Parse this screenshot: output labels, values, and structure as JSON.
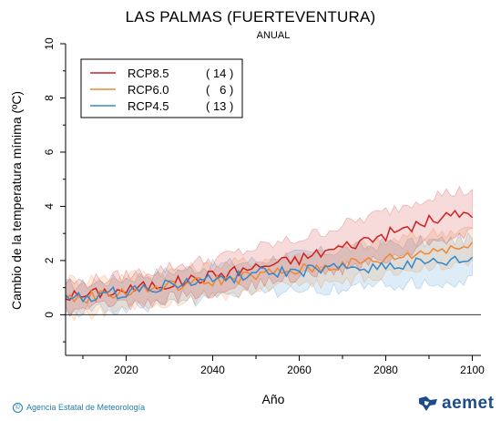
{
  "header": {
    "title": "LAS PALMAS (FUERTEVENTURA)",
    "subtitle": "ANUAL"
  },
  "footer": {
    "credit": "Agencia Estatal de Meteorología",
    "logo_text": "aemet"
  },
  "colors": {
    "rcp85": "#cc2222",
    "rcp60": "#ee8833",
    "rcp45": "#3388cc",
    "zero_line": "#333333"
  },
  "chart_data": {
    "type": "line",
    "title": "LAS PALMAS (FUERTEVENTURA)",
    "subtitle": "ANUAL",
    "xlabel": "Año",
    "ylabel": "Cambio de la temperatura mínima (ºC)",
    "xlim": [
      2006,
      2102
    ],
    "ylim": [
      -1.5,
      10
    ],
    "x_ticks": [
      2020,
      2040,
      2060,
      2080,
      2100
    ],
    "y_ticks": [
      0,
      2,
      4,
      6,
      8,
      10
    ],
    "grid": false,
    "legend_position": "top-left",
    "series": [
      {
        "name": "RCP8.5",
        "count": "( 14 )",
        "color": "#cc2222",
        "points": [
          [
            2010,
            0.7
          ],
          [
            2015,
            0.85
          ],
          [
            2020,
            0.9
          ],
          [
            2025,
            1.05
          ],
          [
            2030,
            1.15
          ],
          [
            2035,
            1.3
          ],
          [
            2040,
            1.45
          ],
          [
            2045,
            1.6
          ],
          [
            2050,
            1.75
          ],
          [
            2055,
            1.9
          ],
          [
            2060,
            2.05
          ],
          [
            2065,
            2.3
          ],
          [
            2070,
            2.5
          ],
          [
            2075,
            2.75
          ],
          [
            2080,
            2.95
          ],
          [
            2085,
            3.2
          ],
          [
            2090,
            3.45
          ],
          [
            2095,
            3.65
          ],
          [
            2100,
            3.8
          ]
        ],
        "band_low": [
          [
            2010,
            0.2
          ],
          [
            2020,
            0.35
          ],
          [
            2030,
            0.6
          ],
          [
            2040,
            0.85
          ],
          [
            2050,
            1.1
          ],
          [
            2060,
            1.4
          ],
          [
            2070,
            1.7
          ],
          [
            2080,
            2.1
          ],
          [
            2090,
            2.6
          ],
          [
            2100,
            3.0
          ]
        ],
        "band_high": [
          [
            2010,
            1.2
          ],
          [
            2020,
            1.45
          ],
          [
            2030,
            1.75
          ],
          [
            2040,
            2.05
          ],
          [
            2050,
            2.45
          ],
          [
            2060,
            2.8
          ],
          [
            2070,
            3.3
          ],
          [
            2080,
            3.8
          ],
          [
            2090,
            4.4
          ],
          [
            2100,
            4.6
          ]
        ]
      },
      {
        "name": "RCP6.0",
        "count": "(   6 )",
        "color": "#ee8833",
        "points": [
          [
            2010,
            0.6
          ],
          [
            2015,
            0.75
          ],
          [
            2020,
            0.85
          ],
          [
            2025,
            0.95
          ],
          [
            2030,
            1.05
          ],
          [
            2035,
            1.15
          ],
          [
            2040,
            1.25
          ],
          [
            2045,
            1.35
          ],
          [
            2050,
            1.45
          ],
          [
            2055,
            1.55
          ],
          [
            2060,
            1.65
          ],
          [
            2065,
            1.75
          ],
          [
            2070,
            1.85
          ],
          [
            2075,
            1.95
          ],
          [
            2080,
            2.05
          ],
          [
            2085,
            2.2
          ],
          [
            2090,
            2.35
          ],
          [
            2095,
            2.5
          ],
          [
            2100,
            2.5
          ]
        ],
        "band_low": [
          [
            2010,
            0.0
          ],
          [
            2020,
            0.2
          ],
          [
            2030,
            0.4
          ],
          [
            2040,
            0.7
          ],
          [
            2050,
            0.9
          ],
          [
            2060,
            1.1
          ],
          [
            2070,
            1.3
          ],
          [
            2080,
            1.5
          ],
          [
            2090,
            1.7
          ],
          [
            2100,
            1.9
          ]
        ],
        "band_high": [
          [
            2010,
            1.3
          ],
          [
            2020,
            1.45
          ],
          [
            2030,
            1.6
          ],
          [
            2040,
            1.8
          ],
          [
            2050,
            2.0
          ],
          [
            2060,
            2.2
          ],
          [
            2070,
            2.5
          ],
          [
            2080,
            2.7
          ],
          [
            2090,
            3.0
          ],
          [
            2100,
            3.2
          ]
        ]
      },
      {
        "name": "RCP4.5",
        "count": "( 13 )",
        "color": "#3388cc",
        "points": [
          [
            2010,
            0.6
          ],
          [
            2015,
            0.75
          ],
          [
            2020,
            0.85
          ],
          [
            2025,
            1.0
          ],
          [
            2030,
            1.1
          ],
          [
            2035,
            1.2
          ],
          [
            2040,
            1.3
          ],
          [
            2045,
            1.4
          ],
          [
            2050,
            1.5
          ],
          [
            2055,
            1.55
          ],
          [
            2060,
            1.6
          ],
          [
            2065,
            1.65
          ],
          [
            2070,
            1.7
          ],
          [
            2075,
            1.75
          ],
          [
            2080,
            1.8
          ],
          [
            2085,
            1.85
          ],
          [
            2090,
            1.9
          ],
          [
            2095,
            1.95
          ],
          [
            2100,
            2.0
          ]
        ],
        "band_low": [
          [
            2010,
            0.1
          ],
          [
            2020,
            0.25
          ],
          [
            2030,
            0.45
          ],
          [
            2040,
            0.6
          ],
          [
            2050,
            0.8
          ],
          [
            2060,
            0.9
          ],
          [
            2070,
            1.0
          ],
          [
            2080,
            1.1
          ],
          [
            2090,
            1.2
          ],
          [
            2100,
            1.3
          ]
        ],
        "band_high": [
          [
            2010,
            1.1
          ],
          [
            2020,
            1.35
          ],
          [
            2030,
            1.6
          ],
          [
            2040,
            1.8
          ],
          [
            2050,
            2.0
          ],
          [
            2060,
            2.2
          ],
          [
            2070,
            2.4
          ],
          [
            2080,
            2.6
          ],
          [
            2090,
            2.7
          ],
          [
            2100,
            2.8
          ]
        ]
      }
    ]
  }
}
